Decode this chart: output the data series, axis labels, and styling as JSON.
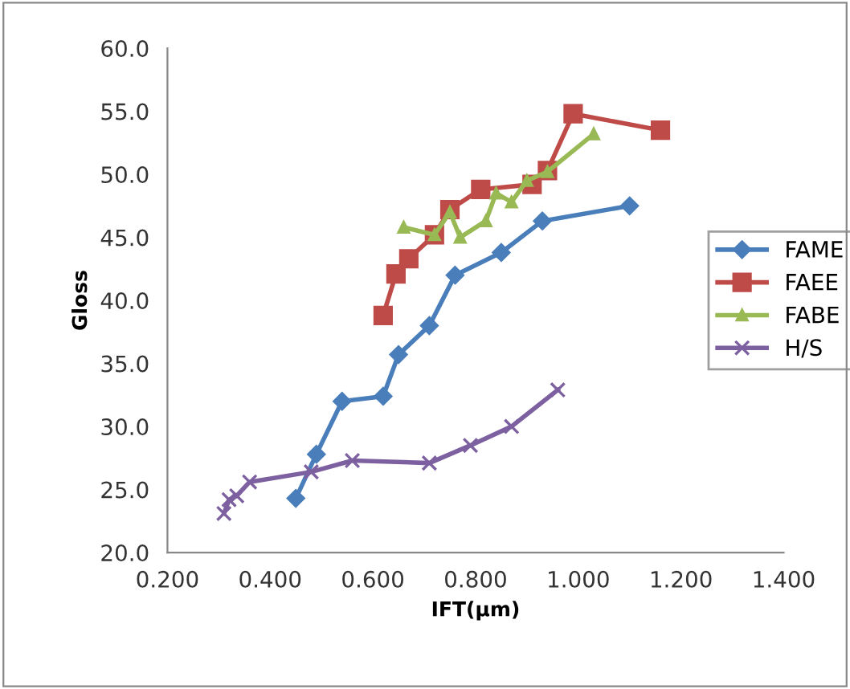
{
  "chart_data": {
    "type": "line",
    "xlabel": "IFT(μm)",
    "ylabel": "Gloss",
    "xlim": [
      0.2,
      1.4
    ],
    "xticks": [
      {
        "value": 0.2,
        "label": "0.200"
      },
      {
        "value": 0.4,
        "label": "0.400"
      },
      {
        "value": 0.6,
        "label": "0.600"
      },
      {
        "value": 0.8,
        "label": "0.800"
      },
      {
        "value": 1.0,
        "label": "1.000"
      },
      {
        "value": 1.2,
        "label": "1.200"
      },
      {
        "value": 1.4,
        "label": "1.400"
      }
    ],
    "ylim": [
      20,
      60
    ],
    "yticks": [
      {
        "value": 20,
        "label": "20.0"
      },
      {
        "value": 25,
        "label": "25.0"
      },
      {
        "value": 30,
        "label": "30.0"
      },
      {
        "value": 35,
        "label": "35.0"
      },
      {
        "value": 40,
        "label": "40.0"
      },
      {
        "value": 45,
        "label": "45.0"
      },
      {
        "value": 50,
        "label": "50.0"
      },
      {
        "value": 55,
        "label": "55.0"
      },
      {
        "value": 60,
        "label": "60.0"
      }
    ],
    "grid": false,
    "legend": "right",
    "line_style": "solid",
    "series": [
      {
        "name": "FAME",
        "color": "#4a7ebb",
        "marker": "diamond",
        "x": [
          0.45,
          0.49,
          0.54,
          0.62,
          0.65,
          0.71,
          0.76,
          0.85,
          0.93,
          1.1
        ],
        "values": [
          24.3,
          27.8,
          32.0,
          32.4,
          35.7,
          38.0,
          42.0,
          43.8,
          46.3,
          47.5
        ]
      },
      {
        "name": "FAEE",
        "color": "#be4b48",
        "marker": "square",
        "x": [
          0.62,
          0.645,
          0.67,
          0.72,
          0.75,
          0.81,
          0.91,
          0.94,
          0.99,
          1.16
        ],
        "values": [
          38.8,
          42.1,
          43.3,
          45.2,
          47.2,
          48.8,
          49.2,
          50.3,
          54.8,
          53.5
        ]
      },
      {
        "name": "FABE",
        "color": "#98b954",
        "marker": "triangle",
        "x": [
          0.66,
          0.72,
          0.75,
          0.77,
          0.82,
          0.84,
          0.87,
          0.9,
          0.94,
          1.03
        ],
        "values": [
          45.8,
          45.2,
          47.0,
          45.0,
          46.3,
          48.5,
          47.8,
          49.5,
          50.2,
          53.2
        ]
      },
      {
        "name": "H/S",
        "color": "#7d60a0",
        "marker": "cross",
        "x": [
          0.31,
          0.32,
          0.335,
          0.36,
          0.48,
          0.56,
          0.71,
          0.79,
          0.87,
          0.96
        ],
        "values": [
          23.1,
          24.2,
          24.5,
          25.6,
          26.4,
          27.3,
          27.1,
          28.5,
          30.0,
          32.9
        ]
      }
    ]
  }
}
